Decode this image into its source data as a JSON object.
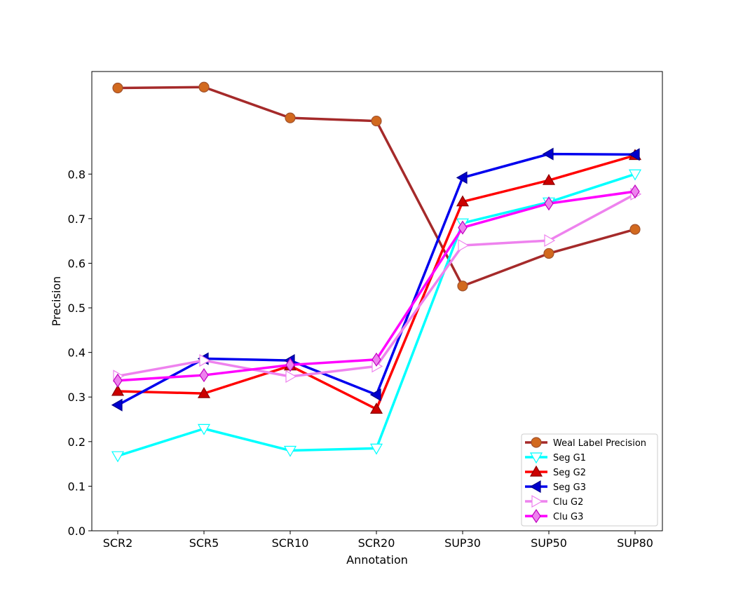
{
  "chart_data": {
    "type": "line",
    "title": "",
    "xlabel": "Annotation",
    "ylabel": "Precision",
    "categories": [
      "SCR2",
      "SCR5",
      "SCR10",
      "SCR20",
      "SUP30",
      "SUP50",
      "SUP80"
    ],
    "ylim": [
      0,
      1.03
    ],
    "yticks": [
      0.0,
      0.1,
      0.2,
      0.3,
      0.4,
      0.5,
      0.6,
      0.7,
      0.8
    ],
    "ytick_labels": [
      "0.0",
      "0.1",
      "0.2",
      "0.3",
      "0.4",
      "0.5",
      "0.6",
      "0.7",
      "0.8"
    ],
    "grid": false,
    "legend_position": "bottom-right",
    "series": [
      {
        "name": "Weal Label Precision",
        "color": "#a52a2a",
        "marker": "circle",
        "marker_fill": "#d2691e",
        "marker_edge": "#a0522d",
        "values": [
          0.993,
          0.995,
          0.926,
          0.919,
          0.549,
          0.622,
          0.676
        ]
      },
      {
        "name": "Seg G1",
        "color": "#00ffff",
        "marker": "triangle-down",
        "marker_fill": "#ffffff",
        "marker_edge": "#00ffff",
        "values": [
          0.168,
          0.229,
          0.18,
          0.185,
          0.69,
          0.737,
          0.8
        ]
      },
      {
        "name": "Seg G2",
        "color": "#ff0000",
        "marker": "triangle-up",
        "marker_fill": "#cc0000",
        "marker_edge": "#8b0000",
        "values": [
          0.313,
          0.308,
          0.37,
          0.273,
          0.738,
          0.786,
          0.842
        ]
      },
      {
        "name": "Seg G3",
        "color": "#0000ee",
        "marker": "triangle-left",
        "marker_fill": "#0000cd",
        "marker_edge": "#00008b",
        "values": [
          0.282,
          0.386,
          0.382,
          0.305,
          0.792,
          0.845,
          0.844
        ]
      },
      {
        "name": "Clu G2",
        "color": "#ee82ee",
        "marker": "triangle-right",
        "marker_fill": "#ffffff",
        "marker_edge": "#ee82ee",
        "values": [
          0.347,
          0.382,
          0.346,
          0.369,
          0.64,
          0.651,
          0.755
        ]
      },
      {
        "name": "Clu G3",
        "color": "#ff00ff",
        "marker": "diamond",
        "marker_fill": "#ee82ee",
        "marker_edge": "#c000c0",
        "values": [
          0.337,
          0.349,
          0.372,
          0.384,
          0.68,
          0.734,
          0.761
        ]
      }
    ]
  }
}
